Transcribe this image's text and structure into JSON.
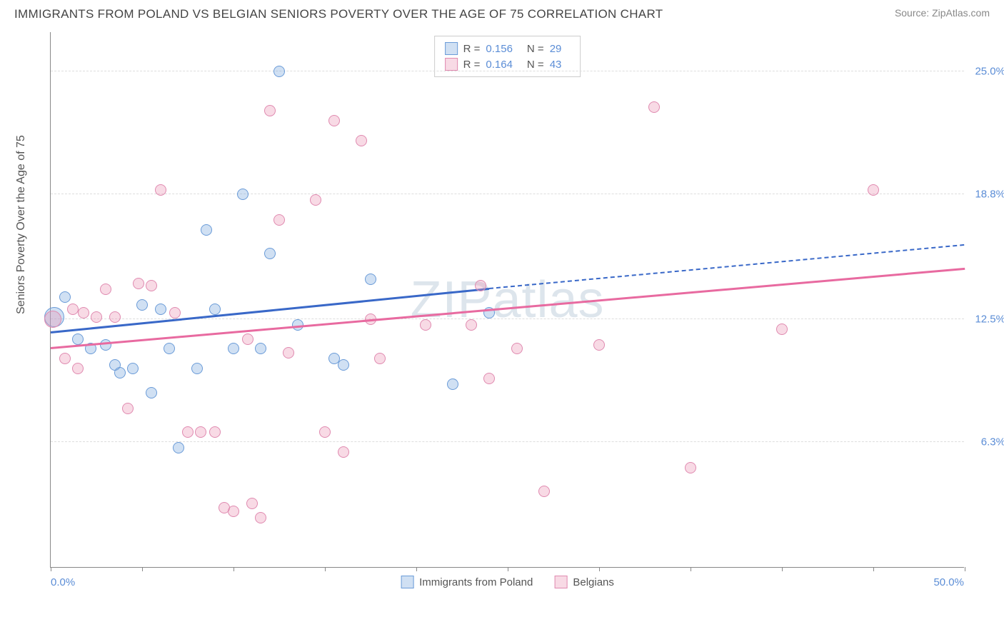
{
  "title": "IMMIGRANTS FROM POLAND VS BELGIAN SENIORS POVERTY OVER THE AGE OF 75 CORRELATION CHART",
  "source": "Source: ZipAtlas.com",
  "watermark": "ZIPatlas",
  "chart": {
    "type": "scatter",
    "ylabel": "Seniors Poverty Over the Age of 75",
    "xlim": [
      0,
      50
    ],
    "ylim": [
      0,
      27
    ],
    "xtick_positions": [
      0,
      5,
      10,
      15,
      20,
      25,
      30,
      35,
      40,
      45,
      50
    ],
    "xlabel_start": "0.0%",
    "xlabel_end": "50.0%",
    "yticks": [
      {
        "pos": 6.3,
        "label": "6.3%"
      },
      {
        "pos": 12.5,
        "label": "12.5%"
      },
      {
        "pos": 18.8,
        "label": "18.8%"
      },
      {
        "pos": 25.0,
        "label": "25.0%"
      }
    ],
    "grid_color": "#dddddd",
    "axis_color": "#888888",
    "background_color": "#ffffff",
    "series": [
      {
        "name": "Immigrants from Poland",
        "fill": "rgba(120,165,220,0.35)",
        "stroke": "#6a9bd8",
        "line_color": "#3968c8",
        "R": "0.156",
        "N": "29",
        "trend": {
          "x1": 0,
          "y1": 11.8,
          "x2": 24,
          "y2": 14.0,
          "x2_dash": 50,
          "y2_dash": 16.2
        },
        "points": [
          {
            "x": 0.2,
            "y": 12.6,
            "r": 14
          },
          {
            "x": 0.8,
            "y": 13.6,
            "r": 8
          },
          {
            "x": 1.5,
            "y": 11.5,
            "r": 8
          },
          {
            "x": 2.2,
            "y": 11.0,
            "r": 8
          },
          {
            "x": 3.0,
            "y": 11.2,
            "r": 8
          },
          {
            "x": 3.5,
            "y": 10.2,
            "r": 8
          },
          {
            "x": 3.8,
            "y": 9.8,
            "r": 8
          },
          {
            "x": 4.5,
            "y": 10.0,
            "r": 8
          },
          {
            "x": 5.0,
            "y": 13.2,
            "r": 8
          },
          {
            "x": 5.5,
            "y": 8.8,
            "r": 8
          },
          {
            "x": 6.0,
            "y": 13.0,
            "r": 8
          },
          {
            "x": 6.5,
            "y": 11.0,
            "r": 8
          },
          {
            "x": 7.0,
            "y": 6.0,
            "r": 8
          },
          {
            "x": 8.0,
            "y": 10.0,
            "r": 8
          },
          {
            "x": 8.5,
            "y": 17.0,
            "r": 8
          },
          {
            "x": 9.0,
            "y": 13.0,
            "r": 8
          },
          {
            "x": 10.0,
            "y": 11.0,
            "r": 8
          },
          {
            "x": 10.5,
            "y": 18.8,
            "r": 8
          },
          {
            "x": 11.5,
            "y": 11.0,
            "r": 8
          },
          {
            "x": 12.0,
            "y": 15.8,
            "r": 8
          },
          {
            "x": 12.5,
            "y": 25.0,
            "r": 8
          },
          {
            "x": 13.5,
            "y": 12.2,
            "r": 8
          },
          {
            "x": 15.5,
            "y": 10.5,
            "r": 8
          },
          {
            "x": 16.0,
            "y": 10.2,
            "r": 8
          },
          {
            "x": 17.5,
            "y": 14.5,
            "r": 8
          },
          {
            "x": 22.0,
            "y": 9.2,
            "r": 8
          },
          {
            "x": 24.0,
            "y": 12.8,
            "r": 8
          }
        ]
      },
      {
        "name": "Belgians",
        "fill": "rgba(235,150,180,0.35)",
        "stroke": "#e08ab0",
        "line_color": "#e86aa0",
        "R": "0.164",
        "N": "43",
        "trend": {
          "x1": 0,
          "y1": 11.0,
          "x2": 50,
          "y2": 15.0
        },
        "points": [
          {
            "x": 0.1,
            "y": 12.5,
            "r": 12
          },
          {
            "x": 0.8,
            "y": 10.5,
            "r": 8
          },
          {
            "x": 1.2,
            "y": 13.0,
            "r": 8
          },
          {
            "x": 1.5,
            "y": 10.0,
            "r": 8
          },
          {
            "x": 1.8,
            "y": 12.8,
            "r": 8
          },
          {
            "x": 2.5,
            "y": 12.6,
            "r": 8
          },
          {
            "x": 3.0,
            "y": 14.0,
            "r": 8
          },
          {
            "x": 3.5,
            "y": 12.6,
            "r": 8
          },
          {
            "x": 4.2,
            "y": 8.0,
            "r": 8
          },
          {
            "x": 4.8,
            "y": 14.3,
            "r": 8
          },
          {
            "x": 5.5,
            "y": 14.2,
            "r": 8
          },
          {
            "x": 6.0,
            "y": 19.0,
            "r": 8
          },
          {
            "x": 6.8,
            "y": 12.8,
            "r": 8
          },
          {
            "x": 7.5,
            "y": 6.8,
            "r": 8
          },
          {
            "x": 8.2,
            "y": 6.8,
            "r": 8
          },
          {
            "x": 9.0,
            "y": 6.8,
            "r": 8
          },
          {
            "x": 9.5,
            "y": 3.0,
            "r": 8
          },
          {
            "x": 10.0,
            "y": 2.8,
            "r": 8
          },
          {
            "x": 10.8,
            "y": 11.5,
            "r": 8
          },
          {
            "x": 11.0,
            "y": 3.2,
            "r": 8
          },
          {
            "x": 11.5,
            "y": 2.5,
            "r": 8
          },
          {
            "x": 12.0,
            "y": 23.0,
            "r": 8
          },
          {
            "x": 12.5,
            "y": 17.5,
            "r": 8
          },
          {
            "x": 13.0,
            "y": 10.8,
            "r": 8
          },
          {
            "x": 14.5,
            "y": 18.5,
            "r": 8
          },
          {
            "x": 15.0,
            "y": 6.8,
            "r": 8
          },
          {
            "x": 15.5,
            "y": 22.5,
            "r": 8
          },
          {
            "x": 16.0,
            "y": 5.8,
            "r": 8
          },
          {
            "x": 17.0,
            "y": 21.5,
            "r": 8
          },
          {
            "x": 17.5,
            "y": 12.5,
            "r": 8
          },
          {
            "x": 18.0,
            "y": 10.5,
            "r": 8
          },
          {
            "x": 20.5,
            "y": 12.2,
            "r": 8
          },
          {
            "x": 23.0,
            "y": 12.2,
            "r": 8
          },
          {
            "x": 23.5,
            "y": 14.2,
            "r": 8
          },
          {
            "x": 24.0,
            "y": 9.5,
            "r": 8
          },
          {
            "x": 25.5,
            "y": 11.0,
            "r": 8
          },
          {
            "x": 27.0,
            "y": 3.8,
            "r": 8
          },
          {
            "x": 30.0,
            "y": 11.2,
            "r": 8
          },
          {
            "x": 33.0,
            "y": 23.2,
            "r": 8
          },
          {
            "x": 35.0,
            "y": 5.0,
            "r": 8
          },
          {
            "x": 40.0,
            "y": 12.0,
            "r": 8
          },
          {
            "x": 45.0,
            "y": 19.0,
            "r": 8
          }
        ]
      }
    ]
  },
  "legend_labels": {
    "r_prefix": "R =",
    "n_prefix": "N ="
  }
}
